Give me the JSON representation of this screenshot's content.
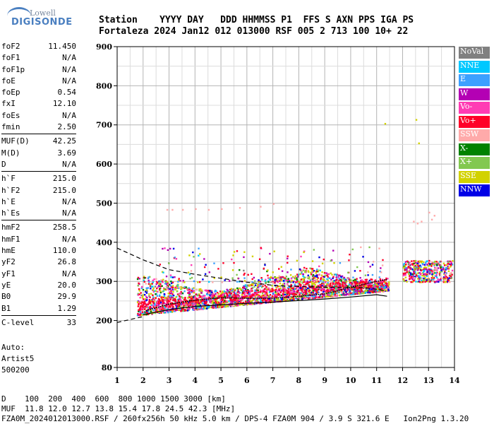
{
  "logo": {
    "line1": "Lowell",
    "line2": "DIGISONDE"
  },
  "header": {
    "line1": "Station    YYYY DAY   DDD HHMMSS P1  FFS S AXN PPS IGA PS",
    "line2": "Fortaleza 2024 Jan12 012 013000 RSF 005 2 713 100 10+ 22"
  },
  "params": {
    "group1": [
      {
        "k": "foF2",
        "v": "11.450"
      },
      {
        "k": "foF1",
        "v": "N/A"
      },
      {
        "k": "foF1p",
        "v": "N/A"
      },
      {
        "k": "foE",
        "v": "N/A"
      },
      {
        "k": "foEp",
        "v": "0.54"
      },
      {
        "k": "fxI",
        "v": "12.10"
      },
      {
        "k": "foEs",
        "v": "N/A"
      },
      {
        "k": "fmin",
        "v": "2.50"
      }
    ],
    "group2": [
      {
        "k": "MUF(D)",
        "v": "42.25"
      },
      {
        "k": "M(D)",
        "v": "3.69"
      },
      {
        "k": "D",
        "v": "N/A"
      }
    ],
    "group3": [
      {
        "k": "h`F",
        "v": "215.0"
      },
      {
        "k": "h`F2",
        "v": "215.0"
      },
      {
        "k": "h`E",
        "v": "N/A"
      },
      {
        "k": "h`Es",
        "v": "N/A"
      }
    ],
    "group4": [
      {
        "k": "hmF2",
        "v": "258.5"
      },
      {
        "k": "hmF1",
        "v": "N/A"
      },
      {
        "k": "hmE",
        "v": "110.0"
      },
      {
        "k": "yF2",
        "v": "26.8"
      },
      {
        "k": "yF1",
        "v": "N/A"
      },
      {
        "k": "yE",
        "v": "20.0"
      },
      {
        "k": "B0",
        "v": "29.9"
      },
      {
        "k": "B1",
        "v": "1.29"
      }
    ],
    "group5": [
      {
        "k": "C-level",
        "v": "33"
      }
    ]
  },
  "auto": {
    "line1": "Auto:",
    "line2": "Artist5",
    "line3": "500200"
  },
  "legend": [
    {
      "label": "NoVal",
      "color": "#808080"
    },
    {
      "label": "NNE",
      "color": "#00c8ff"
    },
    {
      "label": "E",
      "color": "#3ca0ff"
    },
    {
      "label": "W",
      "color": "#b400b4"
    },
    {
      "label": "Vo-",
      "color": "#ff3cb4"
    },
    {
      "label": "Vo+",
      "color": "#ff0028"
    },
    {
      "label": "SSW",
      "color": "#ffaaaa"
    },
    {
      "label": "X-",
      "color": "#008200"
    },
    {
      "label": "X+",
      "color": "#82c850"
    },
    {
      "label": "SSE",
      "color": "#d2d200"
    },
    {
      "label": "NNW",
      "color": "#0000e6"
    }
  ],
  "footer": {
    "line1": "D    100  200  400  600  800 1000 1500 3000 [km]",
    "line2": "MUF  11.8 12.0 12.7 13.8 15.4 17.8 24.5 42.3 [MHz]",
    "line3": "FZA0M_2024012013000.RSF / 260fx256h 50 kHz 5.0 km / DPS-4 FZA0M 904 / 3.9 S 321.6 E   Ion2Png 1.3.20"
  },
  "chart_data": {
    "type": "scatter",
    "xlim": [
      1,
      14
    ],
    "ylim": [
      80,
      900
    ],
    "x_ticks": [
      1,
      2,
      3,
      4,
      5,
      6,
      7,
      8,
      9,
      10,
      11,
      12,
      13,
      14
    ],
    "y_ticks": [
      80,
      200,
      300,
      400,
      500,
      600,
      700,
      800,
      900
    ],
    "grid": true,
    "legend_placement": "right",
    "solid_trace": [
      [
        2.0,
        215
      ],
      [
        3,
        228
      ],
      [
        4,
        236
      ],
      [
        5,
        240
      ],
      [
        6,
        244
      ],
      [
        7,
        247
      ],
      [
        8,
        251
      ],
      [
        9,
        255
      ],
      [
        10,
        260
      ],
      [
        11,
        266
      ],
      [
        11.4,
        262
      ]
    ],
    "dashed_trace": [
      [
        1.0,
        385
      ],
      [
        2,
        355
      ],
      [
        3,
        330
      ],
      [
        4,
        318
      ],
      [
        5,
        308
      ],
      [
        6,
        298
      ],
      [
        7,
        290
      ],
      [
        8,
        287
      ],
      [
        9,
        285
      ],
      [
        10,
        285
      ],
      [
        10.6,
        283
      ],
      [
        11,
        280
      ],
      [
        11.3,
        276
      ]
    ],
    "dashed_low": [
      [
        1.0,
        195
      ],
      [
        2,
        210
      ]
    ],
    "fuzzy_trace": [
      [
        2.1,
        225
      ],
      [
        3,
        242
      ],
      [
        4,
        252
      ],
      [
        5,
        258
      ],
      [
        6,
        257
      ],
      [
        7,
        257
      ],
      [
        8,
        262
      ],
      [
        9,
        268
      ],
      [
        10,
        285
      ],
      [
        11,
        300
      ],
      [
        11.4,
        305
      ]
    ]
  }
}
